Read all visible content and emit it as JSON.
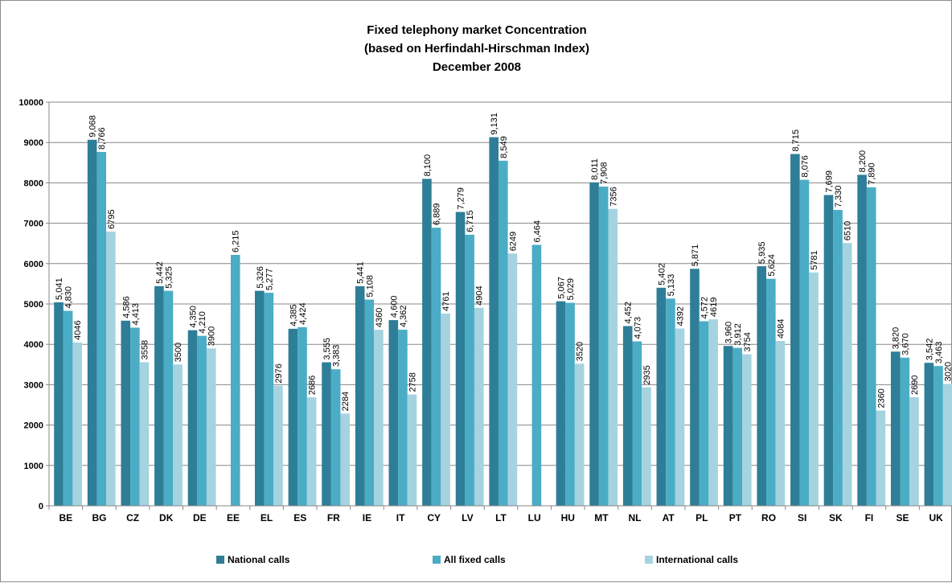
{
  "chart_data": {
    "type": "bar",
    "title": [
      "Fixed telephony market Concentration",
      "(based on Herfindahl-Hirschman Index)",
      "December 2008"
    ],
    "categories": [
      "BE",
      "BG",
      "CZ",
      "DK",
      "DE",
      "EE",
      "EL",
      "ES",
      "FR",
      "IE",
      "IT",
      "CY",
      "LV",
      "LT",
      "LU",
      "HU",
      "MT",
      "NL",
      "AT",
      "PL",
      "PT",
      "RO",
      "SI",
      "SK",
      "FI",
      "SE",
      "UK"
    ],
    "series": [
      {
        "name": "National calls",
        "color": "#2e7e97",
        "values": [
          5041,
          9068,
          4586,
          5442,
          4350,
          null,
          5326,
          4385,
          3555,
          5441,
          4600,
          8100,
          7279,
          9131,
          null,
          5067,
          8011,
          4452,
          5402,
          5871,
          3960,
          5935,
          8715,
          7699,
          8200,
          3820,
          3542
        ],
        "labels": [
          "5,041",
          "9,068",
          "4,586",
          "5,442",
          "4,350",
          "",
          "5,326",
          "4,385",
          "3,555",
          "5,441",
          "4,600",
          "8,100",
          "7,279",
          "9,131",
          "",
          "5,067",
          "8,011",
          "4,452",
          "5,402",
          "5,871",
          "3,960",
          "5,935",
          "8,715",
          "7,699",
          "8,200",
          "3,820",
          "3,542"
        ]
      },
      {
        "name": "All fixed calls",
        "color": "#4bacc6",
        "values": [
          4830,
          8766,
          4413,
          5325,
          4210,
          6215,
          5277,
          4424,
          3383,
          5108,
          4362,
          6889,
          6715,
          8549,
          6464,
          5029,
          7908,
          4073,
          5133,
          4572,
          3912,
          5624,
          8076,
          7330,
          7890,
          3670,
          3463
        ],
        "labels": [
          "4,830",
          "8,766",
          "4,413",
          "5,325",
          "4,210",
          "6,215",
          "5,277",
          "4,424",
          "3,383",
          "5,108",
          "4,362",
          "6,889",
          "6,715",
          "8,549",
          "6,464",
          "5,029",
          "7,908",
          "4,073",
          "5,133",
          "4,572",
          "3,912",
          "5,624",
          "8,076",
          "7,330",
          "7,890",
          "3,670",
          "3,463"
        ]
      },
      {
        "name": "International calls",
        "color": "#a5d3e0",
        "values": [
          4046,
          6795,
          3558,
          3500,
          3900,
          null,
          2976,
          2686,
          2284,
          4360,
          2758,
          4761,
          4904,
          6249,
          null,
          3520,
          7356,
          2935,
          4392,
          4619,
          3754,
          4084,
          5781,
          6510,
          2360,
          2690,
          3020
        ],
        "labels": [
          "4046",
          "6795",
          "3558",
          "3500",
          "3900",
          "",
          "2976",
          "2686",
          "2284",
          "4360",
          "2758",
          "4761",
          "4904",
          "6249",
          "",
          "3520",
          "7356",
          "2935",
          "4392",
          "4619",
          "3754",
          "4084",
          "5781",
          "6510",
          "2360",
          "2690",
          "3020"
        ]
      }
    ],
    "yticks": [
      "0",
      "1000",
      "2000",
      "3000",
      "4000",
      "5000",
      "6000",
      "7000",
      "8000",
      "9000",
      "10000"
    ],
    "ylim": [
      0,
      10000
    ],
    "grid": true,
    "legend": "bottom"
  }
}
